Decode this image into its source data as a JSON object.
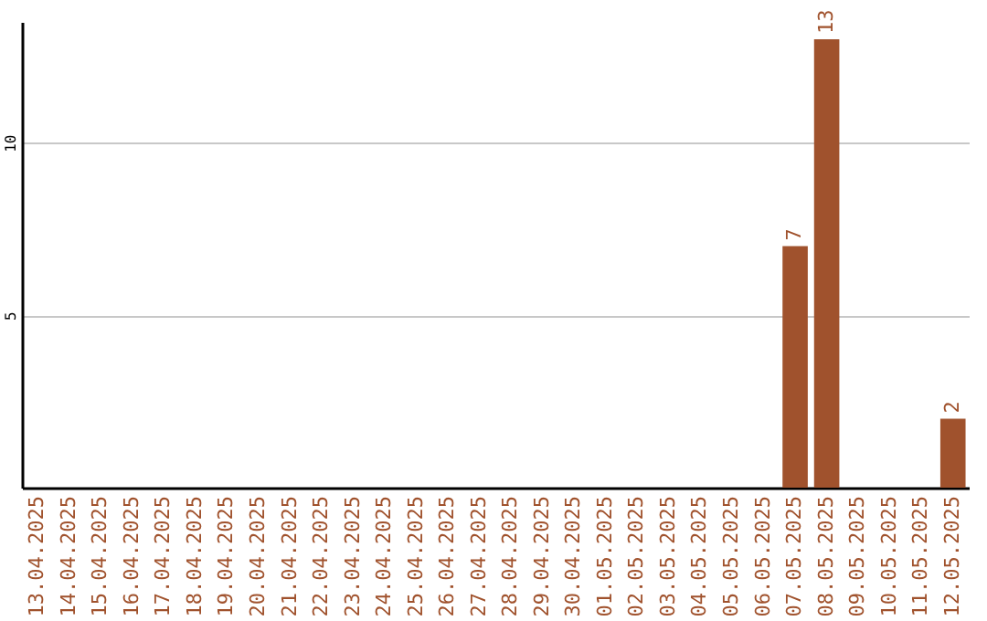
{
  "chart_data": {
    "type": "bar",
    "categories": [
      "13.04.2025",
      "14.04.2025",
      "15.04.2025",
      "16.04.2025",
      "17.04.2025",
      "18.04.2025",
      "19.04.2025",
      "20.04.2025",
      "21.04.2025",
      "22.04.2025",
      "23.04.2025",
      "24.04.2025",
      "25.04.2025",
      "26.04.2025",
      "27.04.2025",
      "28.04.2025",
      "29.04.2025",
      "30.04.2025",
      "01.05.2025",
      "02.05.2025",
      "03.05.2025",
      "04.05.2025",
      "05.05.2025",
      "06.05.2025",
      "07.05.2025",
      "08.05.2025",
      "09.05.2025",
      "10.05.2025",
      "11.05.2025",
      "12.05.2025"
    ],
    "values": [
      0,
      0,
      0,
      0,
      0,
      0,
      0,
      0,
      0,
      0,
      0,
      0,
      0,
      0,
      0,
      0,
      0,
      0,
      0,
      0,
      0,
      0,
      0,
      0,
      7,
      13,
      0,
      0,
      0,
      2
    ],
    "value_labels": [
      null,
      null,
      null,
      null,
      null,
      null,
      null,
      null,
      null,
      null,
      null,
      null,
      null,
      null,
      null,
      null,
      null,
      null,
      null,
      null,
      null,
      null,
      null,
      null,
      "7",
      "13",
      null,
      null,
      null,
      "2"
    ],
    "color": "#a0522d",
    "ylim": [
      0,
      13.5
    ],
    "yticks": [
      5,
      10
    ],
    "grid": "y"
  }
}
